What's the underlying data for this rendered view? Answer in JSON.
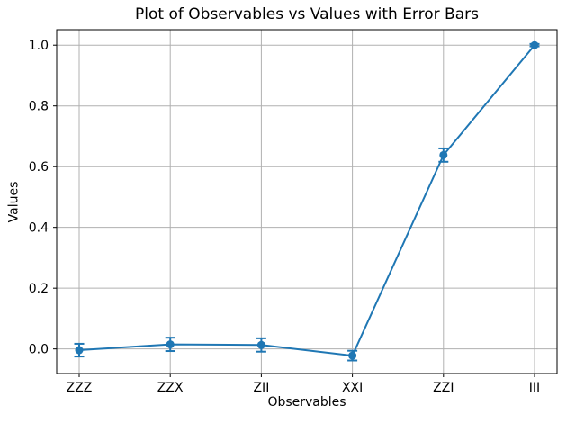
{
  "chart_data": {
    "type": "line",
    "title": "Plot of Observables vs Values with Error Bars",
    "xlabel": "Observables",
    "ylabel": "Values",
    "categories": [
      "ZZZ",
      "ZZX",
      "ZII",
      "XXI",
      "ZZI",
      "III"
    ],
    "series": [
      {
        "name": "Values",
        "values": [
          -0.004,
          0.015,
          0.013,
          -0.022,
          0.638,
          1.0
        ],
        "errors": [
          0.021,
          0.022,
          0.022,
          0.016,
          0.022,
          0.004
        ],
        "color": "#1f77b4",
        "marker": "circle"
      }
    ],
    "yticks": [
      0.0,
      0.2,
      0.4,
      0.6,
      0.8,
      1.0
    ],
    "ytick_format": "1dp",
    "ylim": [
      -0.081,
      1.051
    ],
    "grid": true,
    "grid_color": "#b0b0b0",
    "axes_color": "#000000",
    "text_color": "#000000",
    "background": "#ffffff",
    "legend": "none"
  }
}
